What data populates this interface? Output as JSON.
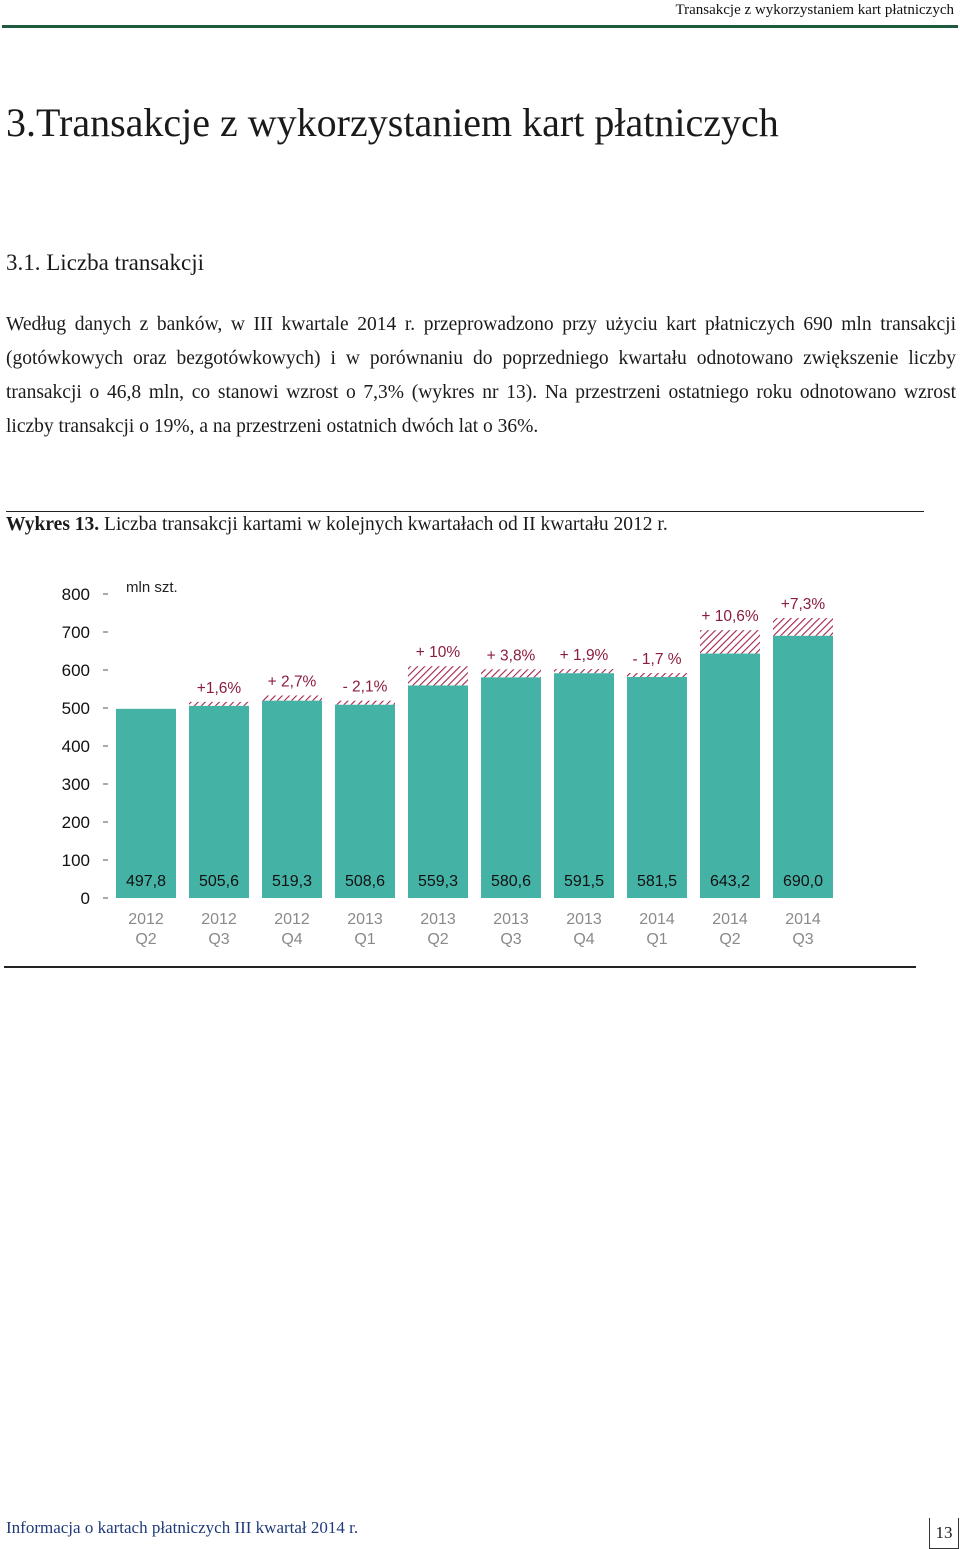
{
  "running_header": "Transakcje z wykorzystaniem kart płatniczych",
  "heading": "3.Transakcje z wykorzystaniem kart płatniczych",
  "subheading": "3.1. Liczba transakcji",
  "paragraph": "Według danych z banków, w III kwartale 2014 r. przeprowadzono przy użyciu kart płatniczych 690 mln transakcji (gotówkowych oraz bezgotówkowych) i w porównaniu do poprzedniego kwartału odnotowano zwiększenie liczby transakcji o 46,8 mln, co stanowi wzrost o 7,3% (wykres nr 13). Na przestrzeni ostatniego roku odnotowano wzrost liczby transakcji o 19%, a na przestrzeni ostatnich dwóch lat o 36%.",
  "caption": {
    "label": "Wykres 13.",
    "text": "Liczba transakcji kartami w kolejnych kwartałach od II kwartału 2012 r."
  },
  "colors": {
    "bar": "#45b2a6",
    "change_label": "#8a1c3c",
    "hatch": "#a3234d",
    "header_rule": "#1f5a3c",
    "footer_text": "#1f3a7a"
  },
  "chart_data": {
    "type": "bar",
    "unit_label": "mln szt.",
    "ylim": [
      0,
      800
    ],
    "yticks": [
      "0",
      "100",
      "200",
      "300",
      "400",
      "500",
      "600",
      "700",
      "800"
    ],
    "grid": false,
    "categories": [
      {
        "year": "2012",
        "quarter": "Q2"
      },
      {
        "year": "2012",
        "quarter": "Q3"
      },
      {
        "year": "2012",
        "quarter": "Q4"
      },
      {
        "year": "2013",
        "quarter": "Q1"
      },
      {
        "year": "2013",
        "quarter": "Q2"
      },
      {
        "year": "2013",
        "quarter": "Q3"
      },
      {
        "year": "2013",
        "quarter": "Q4"
      },
      {
        "year": "2014",
        "quarter": "Q1"
      },
      {
        "year": "2014",
        "quarter": "Q2"
      },
      {
        "year": "2014",
        "quarter": "Q3"
      }
    ],
    "values": [
      497.8,
      505.6,
      519.3,
      508.6,
      559.3,
      580.6,
      591.5,
      581.5,
      643.2,
      690.0
    ],
    "value_labels": [
      "497,8",
      "505,6",
      "519,3",
      "508,6",
      "559,3",
      "580,6",
      "591,5",
      "581,5",
      "643,2",
      "690,0"
    ],
    "change_labels": [
      "",
      "+1,6%",
      "+ 2,7%",
      "- 2,1%",
      "+ 10%",
      "+ 3,8%",
      "+ 1,9%",
      "- 1,7 %",
      "+ 10,6%",
      "+7,3%"
    ]
  },
  "footer": "Informacja o kartach płatniczych III kwartał 2014 r.",
  "page_number": "13"
}
